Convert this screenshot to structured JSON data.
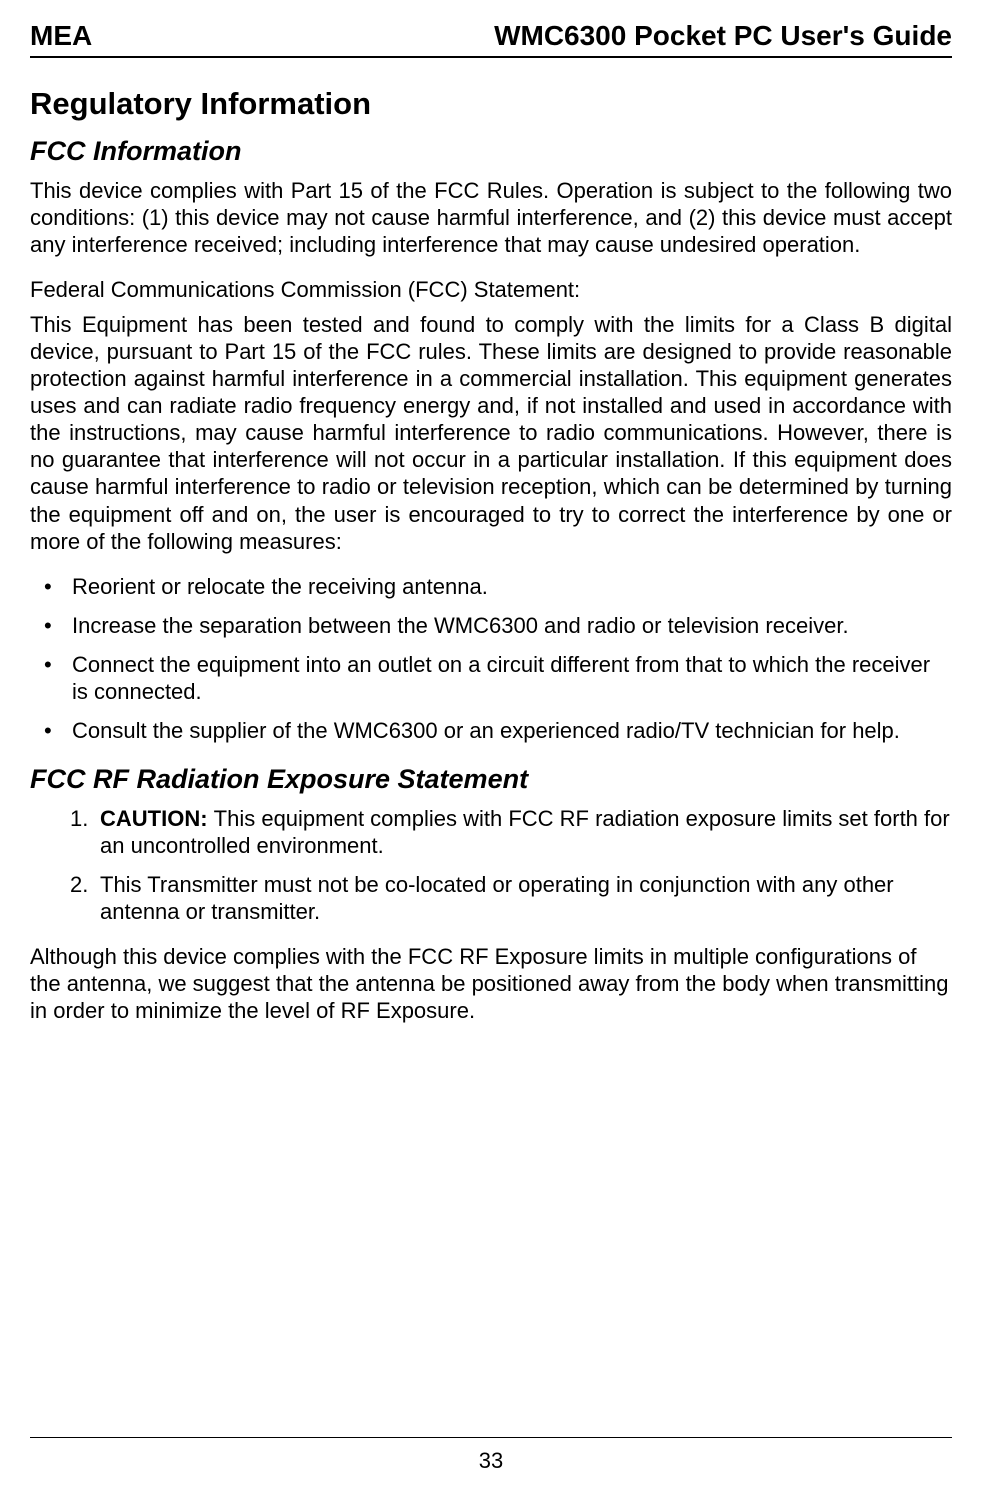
{
  "header": {
    "left": "MEA",
    "right": "WMC6300 Pocket PC User's Guide"
  },
  "section_title": "Regulatory Information",
  "fcc_info": {
    "heading": "FCC Information",
    "intro": "This device complies with Part 15 of the FCC Rules.  Operation is subject to the following two conditions: (1) this device may not cause harmful interference, and (2) this device must accept any interference received; including interference that may cause undesired operation.",
    "statement_title": "Federal Communications Commission (FCC) Statement:",
    "statement_body": "This Equipment has been tested and found to comply with the limits for a Class B digital device, pursuant to Part 15 of the FCC rules.  These limits are designed to provide reasonable protection against harmful interference in a commercial installation.  This equipment generates uses and can radiate radio frequency energy and, if not installed and used in accordance with the instructions, may cause harmful interference to radio communications.  However, there is no guarantee that interference will not occur in a particular installation.  If this equipment does cause harmful interference to radio or television reception, which can be determined by turning the equipment off and on, the user is encouraged to try to correct the interference by one or more of the following measures:",
    "bullets": [
      "Reorient or relocate the receiving antenna.",
      "Increase the separation between the WMC6300 and radio or television receiver.",
      "Connect the equipment into an outlet on a circuit different from that to which the receiver is connected.",
      "Consult the supplier of the WMC6300 or an experienced radio/TV technician for help."
    ]
  },
  "rf_exposure": {
    "heading": "FCC RF Radiation Exposure Statement",
    "items": [
      {
        "num": "1.",
        "bold_prefix": "CAUTION:  ",
        "text": "This equipment complies with FCC RF radiation exposure limits set forth for an uncontrolled environment."
      },
      {
        "num": "2.",
        "bold_prefix": "",
        "text": "This Transmitter must not be co-located or operating in conjunction with any other antenna or transmitter."
      }
    ],
    "closing": "Although this device complies with the FCC RF Exposure limits in multiple configurations of the antenna, we suggest that the antenna be positioned away from the body when transmitting in order to minimize the level of RF Exposure."
  },
  "page_number": "33",
  "styling": {
    "page_bg": "#ffffff",
    "text_color": "#000000",
    "header_border_color": "#000000",
    "footer_border_color": "#000000",
    "header_fontsize": 28,
    "h1_fontsize": 31,
    "h2_fontsize": 27,
    "body_fontsize": 22,
    "font_family": "Arial"
  }
}
